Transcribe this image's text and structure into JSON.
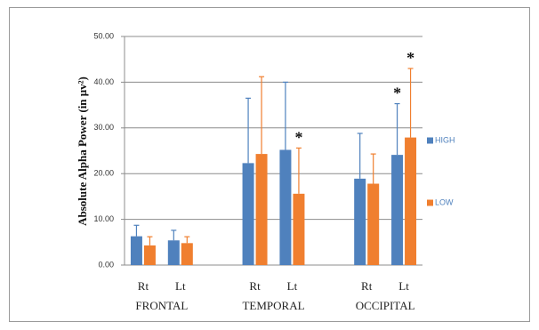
{
  "chart_data": {
    "type": "bar",
    "y_label": "Absolute Alpha Power (in μv²)",
    "categories": [
      "Rt",
      "Lt",
      null,
      "Rt",
      "Lt",
      null,
      "Rt",
      "Lt"
    ],
    "groups": [
      "FRONTAL",
      "TEMPORAL",
      "OCCIPITAL"
    ],
    "series": [
      {
        "name": "HIGH",
        "color": "#4f81bd",
        "values": [
          6.3,
          5.4,
          null,
          22.3,
          25.2,
          null,
          18.9,
          24.1
        ],
        "errors": [
          2.4,
          2.2,
          null,
          14.2,
          14.8,
          null,
          9.9,
          11.2
        ],
        "annotations": [
          null,
          null,
          null,
          null,
          null,
          null,
          null,
          "*"
        ]
      },
      {
        "name": "LOW",
        "color": "#f07f2f",
        "values": [
          4.3,
          4.8,
          null,
          24.3,
          15.6,
          null,
          17.8,
          27.9
        ],
        "errors": [
          1.9,
          1.4,
          null,
          16.9,
          10.0,
          null,
          6.5,
          15.1
        ],
        "annotations": [
          null,
          null,
          null,
          null,
          "*",
          null,
          null,
          "*"
        ]
      }
    ],
    "ylim": [
      0,
      50
    ],
    "yticks": [
      {
        "value": 0,
        "label": "0.00"
      },
      {
        "value": 10,
        "label": "10.00"
      },
      {
        "value": 20,
        "label": "20.00"
      },
      {
        "value": 30,
        "label": "30.00"
      },
      {
        "value": 40,
        "label": "40.00"
      },
      {
        "value": 50,
        "label": "50.00"
      }
    ],
    "grid": true,
    "legend": "right"
  }
}
